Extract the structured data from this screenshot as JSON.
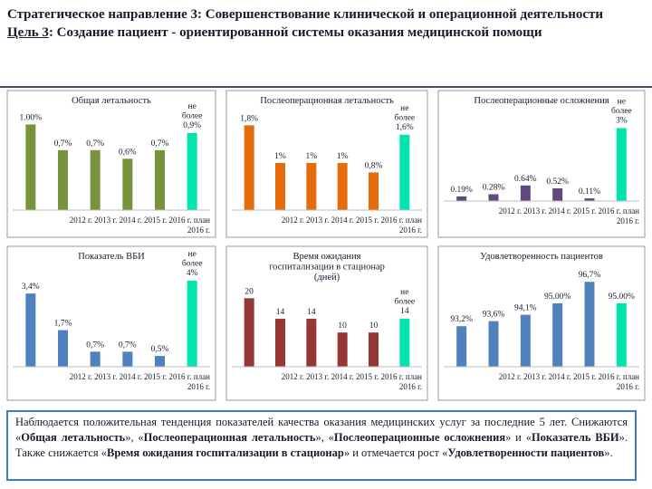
{
  "title": {
    "line1": "Стратегическое направление 3: Совершенствование клинической и операционной деятельности",
    "goal_label": "Цель 3",
    "goal_rest": ": Создание пациент - ориентированной системы оказания медицинской помощи"
  },
  "colors": {
    "green": "#77933c",
    "orange": "#e46c0a",
    "purple": "#604a7b",
    "blue": "#4f81bd",
    "darkred": "#953735",
    "highlight": "#00e5b0",
    "note_border": "#3a7bc8"
  },
  "chart_data": [
    {
      "id": "mortality",
      "type": "bar",
      "title": "Общая летальность",
      "categories": [
        "2012 г.",
        "2013 г.",
        "2014 г.",
        "2015 г.",
        "2016 г.",
        "план 2016 г."
      ],
      "values": [
        1.0,
        0.7,
        0.7,
        0.6,
        0.7,
        0.9
      ],
      "labels": [
        "1.00%",
        "0,7%",
        "0,7%",
        "0,6%",
        "0,7%",
        "не более 0,9%"
      ],
      "ylim": [
        0,
        1.1
      ],
      "color": "green"
    },
    {
      "id": "postop_mortality",
      "type": "bar",
      "title": "Послеоперационная летальность",
      "categories": [
        "2012 г.",
        "2013 г.",
        "2014 г.",
        "2015 г.",
        "2016 г.",
        "план 2016 г."
      ],
      "values": [
        1.8,
        1.0,
        1.0,
        1.0,
        0.8,
        1.6
      ],
      "labels": [
        "1,8%",
        "1%",
        "1%",
        "1%",
        "0,8%",
        "не более 1,6%"
      ],
      "ylim": [
        0,
        2.0
      ],
      "color": "orange"
    },
    {
      "id": "postop_complications",
      "type": "bar",
      "title": "Послеоперационные осложнения",
      "categories": [
        "2012 г.",
        "2013 г.",
        "2014 г.",
        "2015 г.",
        "2016 г.",
        "план 2016 г."
      ],
      "values": [
        0.19,
        0.28,
        0.64,
        0.52,
        0.11,
        3.0
      ],
      "labels": [
        "0.19%",
        "0.28%",
        "0.64%",
        "0.52%",
        "0.11%",
        "не более 3%"
      ],
      "ylim": [
        0,
        3.5
      ],
      "color": "purple"
    },
    {
      "id": "hai",
      "type": "bar",
      "title": "Показатель ВБИ",
      "categories": [
        "2012 г.",
        "2013 г.",
        "2014 г.",
        "2015 г.",
        "2016 г.",
        "план 2016 г."
      ],
      "values": [
        3.4,
        1.7,
        0.7,
        0.7,
        0.5,
        4.0
      ],
      "labels": [
        "3,4%",
        "1,7%",
        "0,7%",
        "0,7%",
        "0,5%",
        "не более 4%"
      ],
      "ylim": [
        0,
        4.5
      ],
      "color": "blue"
    },
    {
      "id": "wait_time",
      "type": "bar",
      "title": "Время ожидания госпитализации в стационар (дней)",
      "categories": [
        "2012 г.",
        "2013 г.",
        "2014 г.",
        "2015 г.",
        "2016 г.",
        "план 2016 г."
      ],
      "values": [
        20,
        14,
        14,
        10,
        10,
        14
      ],
      "labels": [
        "20",
        "14",
        "14",
        "10",
        "10",
        "не более 14"
      ],
      "ylim": [
        0,
        23
      ],
      "color": "darkred"
    },
    {
      "id": "satisfaction",
      "type": "bar",
      "title": "Удовлетворенность пациентов",
      "categories": [
        "2012 г.",
        "2013 г.",
        "2014 г.",
        "2015 г.",
        "2016 г.",
        "план 2016 г."
      ],
      "values": [
        93.2,
        93.6,
        94.1,
        95.0,
        96.7,
        95.0
      ],
      "labels": [
        "93,2%",
        "93,6%",
        "94,1%",
        "95.00%",
        "96,7%",
        "95.00%"
      ],
      "ylim": [
        90,
        97.5
      ],
      "color": "blue"
    }
  ],
  "note": {
    "p1": "Наблюдается положительная тенденция показателей качества оказания медицинских услуг за последние 5 лет. Снижаются «",
    "b1": "Общая летальность",
    "p2": "», «",
    "b2": "Послеоперационная летальность",
    "p3": "», «",
    "b3": "Послеоперационные осложнения",
    "p4": "» и «",
    "b4": "Показатель ВБИ",
    "p5": "». Также снижается «",
    "b5": "Время ожидания госпитализации в стационар",
    "p6": "» и отмечается рост «",
    "b6": "Удовлетворенности пациентов",
    "p7": "»."
  }
}
